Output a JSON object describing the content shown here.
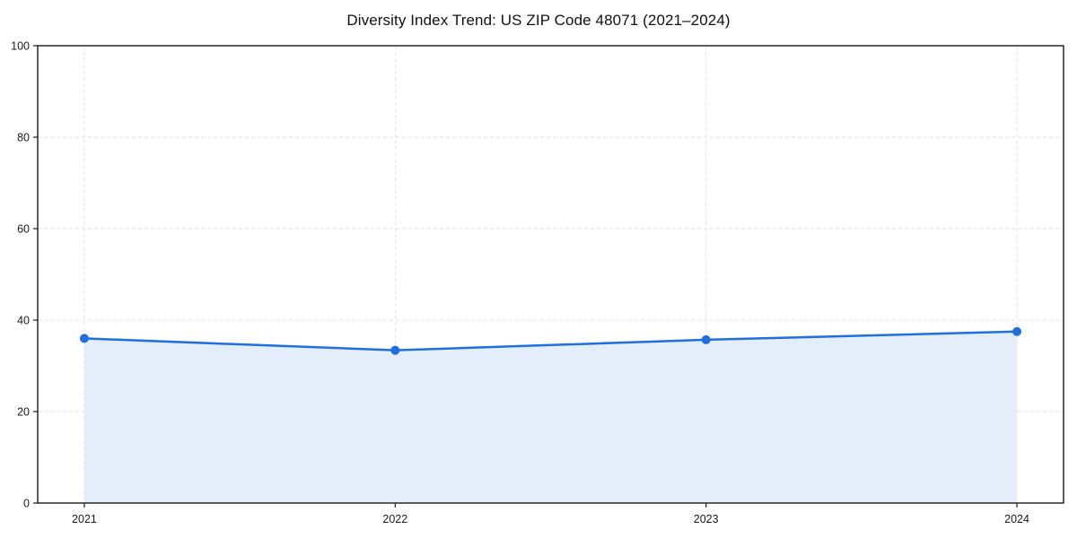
{
  "chart_data": {
    "type": "line",
    "title": "Diversity Index Trend: US ZIP Code 48071 (2021–2024)",
    "xlabel": "",
    "ylabel": "",
    "categories": [
      "2021",
      "2022",
      "2023",
      "2024"
    ],
    "series": [
      {
        "name": "Diversity Index",
        "values": [
          36.0,
          33.4,
          35.7,
          37.5
        ],
        "line_color": "#1f6fe0",
        "marker": "circle",
        "marker_color": "#1f6fe0",
        "area_fill_color": "#e4eefb"
      }
    ],
    "ylim": [
      0,
      100
    ],
    "yticks": [
      0,
      20,
      40,
      60,
      80,
      100
    ],
    "grid": true,
    "grid_style": "dashed",
    "grid_color": "#e2e2e2",
    "axis_color": "#1a1a1a",
    "tick_label_color": "#1a1a1a",
    "background_color": "#ffffff",
    "legend_position": "none"
  }
}
